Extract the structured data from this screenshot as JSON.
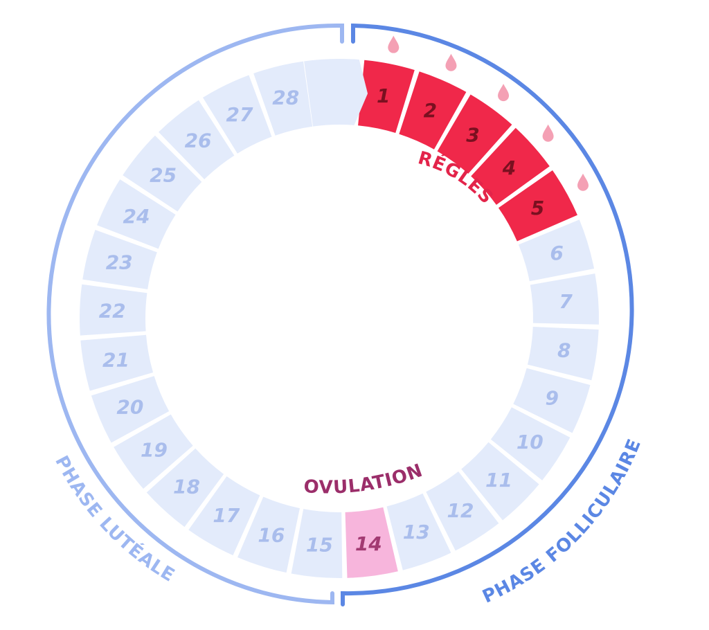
{
  "days": [
    {
      "label": "1",
      "type": "period"
    },
    {
      "label": "2",
      "type": "period"
    },
    {
      "label": "3",
      "type": "period"
    },
    {
      "label": "4",
      "type": "period"
    },
    {
      "label": "5",
      "type": "period"
    },
    {
      "label": "6",
      "type": "normal"
    },
    {
      "label": "7",
      "type": "normal"
    },
    {
      "label": "8",
      "type": "normal"
    },
    {
      "label": "9",
      "type": "normal"
    },
    {
      "label": "10",
      "type": "normal"
    },
    {
      "label": "11",
      "type": "normal"
    },
    {
      "label": "12",
      "type": "normal"
    },
    {
      "label": "13",
      "type": "normal"
    },
    {
      "label": "14",
      "type": "ovulation"
    },
    {
      "label": "15",
      "type": "normal"
    },
    {
      "label": "16",
      "type": "normal"
    },
    {
      "label": "17",
      "type": "normal"
    },
    {
      "label": "18",
      "type": "normal"
    },
    {
      "label": "19",
      "type": "normal"
    },
    {
      "label": "20",
      "type": "normal"
    },
    {
      "label": "21",
      "type": "normal"
    },
    {
      "label": "22",
      "type": "normal"
    },
    {
      "label": "23",
      "type": "normal"
    },
    {
      "label": "24",
      "type": "normal"
    },
    {
      "label": "25",
      "type": "normal"
    },
    {
      "label": "26",
      "type": "normal"
    },
    {
      "label": "27",
      "type": "normal"
    },
    {
      "label": "28",
      "type": "normal"
    }
  ],
  "labels": {
    "period": "RÉGLES",
    "ovulation": "OVULATION",
    "follicular_phase": "PHASE FOLLICULAIRE",
    "luteal_phase": "PHASE LUTÉALE"
  },
  "colors": {
    "period_fill": "#f0284a",
    "period_text": "#7a1020",
    "period_drop": "#f4a0b4",
    "period_label": "#e3244a",
    "normal_fill": "#e3ebfb",
    "normal_text": "#a9bdec",
    "ovulation_fill": "#f7b5dc",
    "ovulation_text": "#a23a72",
    "ovulation_label": "#9b2e6a",
    "follicular_arc": "#5b87e4",
    "luteal_arc": "#9db7f1"
  },
  "icons": {
    "period_day": "blood-drop-icon",
    "cycle_start": "arrow-chevron-icon"
  }
}
